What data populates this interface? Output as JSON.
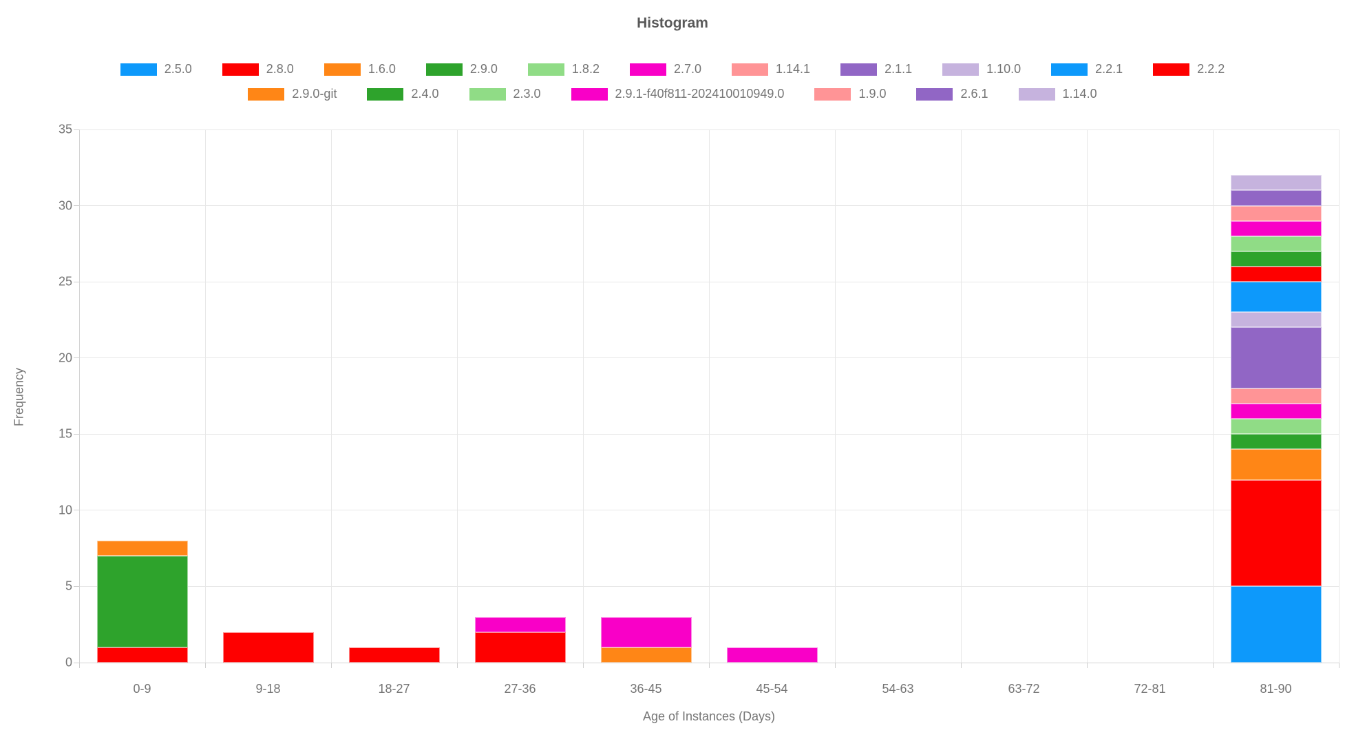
{
  "title": "Histogram",
  "chart_data": {
    "type": "bar",
    "stacked": true,
    "title": "Histogram",
    "xlabel": "Age of Instances (Days)",
    "ylabel": "Frequency",
    "ylim": [
      0,
      35
    ],
    "y_tick_step": 5,
    "grid": true,
    "legend_position": "top",
    "legend_row_split": 11,
    "categories": [
      "0-9",
      "9-18",
      "18-27",
      "27-36",
      "36-45",
      "45-54",
      "54-63",
      "63-72",
      "72-81",
      "81-90"
    ],
    "series": [
      {
        "name": "2.5.0",
        "color": "#0d99fb",
        "values": [
          0,
          0,
          0,
          0,
          0,
          0,
          0,
          0,
          0,
          5
        ]
      },
      {
        "name": "2.8.0",
        "color": "#fe0000",
        "values": [
          1,
          2,
          1,
          2,
          0,
          0,
          0,
          0,
          0,
          7
        ]
      },
      {
        "name": "1.6.0",
        "color": "#ff8616",
        "values": [
          0,
          0,
          0,
          0,
          1,
          0,
          0,
          0,
          0,
          2
        ]
      },
      {
        "name": "2.9.0",
        "color": "#2ea32c",
        "values": [
          6,
          0,
          0,
          0,
          0,
          0,
          0,
          0,
          0,
          1
        ]
      },
      {
        "name": "1.8.2",
        "color": "#90dc86",
        "values": [
          0,
          0,
          0,
          0,
          0,
          0,
          0,
          0,
          0,
          1
        ]
      },
      {
        "name": "2.7.0",
        "color": "#f900c7",
        "values": [
          0,
          0,
          0,
          1,
          2,
          1,
          0,
          0,
          0,
          1
        ]
      },
      {
        "name": "1.14.1",
        "color": "#ff9496",
        "values": [
          0,
          0,
          0,
          0,
          0,
          0,
          0,
          0,
          0,
          1
        ]
      },
      {
        "name": "2.1.1",
        "color": "#9166c5",
        "values": [
          0,
          0,
          0,
          0,
          0,
          0,
          0,
          0,
          0,
          4
        ]
      },
      {
        "name": "1.10.0",
        "color": "#c6b3de",
        "values": [
          0,
          0,
          0,
          0,
          0,
          0,
          0,
          0,
          0,
          1
        ]
      },
      {
        "name": "2.2.1",
        "color": "#0d99fb",
        "values": [
          0,
          0,
          0,
          0,
          0,
          0,
          0,
          0,
          0,
          2
        ]
      },
      {
        "name": "2.2.2",
        "color": "#fe0000",
        "values": [
          0,
          0,
          0,
          0,
          0,
          0,
          0,
          0,
          0,
          1
        ]
      },
      {
        "name": "2.9.0-git",
        "color": "#ff8616",
        "values": [
          1,
          0,
          0,
          0,
          0,
          0,
          0,
          0,
          0,
          0
        ]
      },
      {
        "name": "2.4.0",
        "color": "#2ea32c",
        "values": [
          0,
          0,
          0,
          0,
          0,
          0,
          0,
          0,
          0,
          1
        ]
      },
      {
        "name": "2.3.0",
        "color": "#90dc86",
        "values": [
          0,
          0,
          0,
          0,
          0,
          0,
          0,
          0,
          0,
          1
        ]
      },
      {
        "name": "2.9.1-f40f811-202410010949.0",
        "color": "#f900c7",
        "values": [
          0,
          0,
          0,
          0,
          0,
          0,
          0,
          0,
          0,
          1
        ]
      },
      {
        "name": "1.9.0",
        "color": "#ff9496",
        "values": [
          0,
          0,
          0,
          0,
          0,
          0,
          0,
          0,
          0,
          1
        ]
      },
      {
        "name": "2.6.1",
        "color": "#9166c5",
        "values": [
          0,
          0,
          0,
          0,
          0,
          0,
          0,
          0,
          0,
          1
        ]
      },
      {
        "name": "1.14.0",
        "color": "#c6b3de",
        "values": [
          0,
          0,
          0,
          0,
          0,
          0,
          0,
          0,
          0,
          1
        ]
      }
    ]
  }
}
